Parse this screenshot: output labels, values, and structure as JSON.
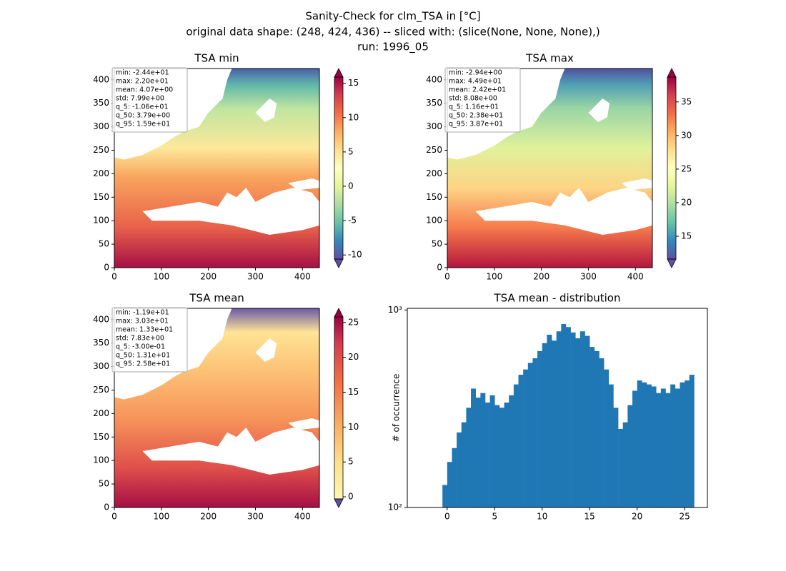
{
  "suptitle": [
    "Sanity-Check for clm_TSA in [°C]",
    "original data shape: (248, 424, 436) -- sliced with: (slice(None, None, None),)",
    "run: 1996_05"
  ],
  "chart_data": [
    {
      "type": "heatmap",
      "title": "TSA min",
      "xlim": [
        0,
        436
      ],
      "ylim": [
        0,
        424
      ],
      "xticks": [
        0,
        100,
        200,
        300,
        400
      ],
      "yticks": [
        0,
        50,
        100,
        150,
        200,
        250,
        300,
        350,
        400
      ],
      "clim": [
        -10.6,
        15.9
      ],
      "cticks": [
        -10,
        -5,
        0,
        5,
        10,
        15
      ],
      "colormap": "Spectral_r",
      "stats": [
        "min: -2.44e+01",
        "max: 2.20e+01",
        "mean: 4.07e+00",
        "std: 7.99e+00",
        "q_5: -1.06e+01",
        "q_50: 3.79e+00",
        "q_95: 1.59e+01"
      ]
    },
    {
      "type": "heatmap",
      "title": "TSA max",
      "xlim": [
        0,
        436
      ],
      "ylim": [
        0,
        424
      ],
      "xticks": [
        0,
        100,
        200,
        300,
        400
      ],
      "yticks": [
        0,
        50,
        100,
        150,
        200,
        250,
        300,
        350,
        400
      ],
      "clim": [
        11.6,
        38.7
      ],
      "cticks": [
        15,
        20,
        25,
        30,
        35
      ],
      "colormap": "Spectral_r",
      "stats": [
        "min: -2.94e+00",
        "max: 4.49e+01",
        "mean: 2.42e+01",
        "std: 8.08e+00",
        "q_5: 1.16e+01",
        "q_50: 2.38e+01",
        "q_95: 3.87e+01"
      ]
    },
    {
      "type": "heatmap",
      "title": "TSA mean",
      "xlim": [
        0,
        436
      ],
      "ylim": [
        0,
        424
      ],
      "xticks": [
        0,
        100,
        200,
        300,
        400
      ],
      "yticks": [
        0,
        50,
        100,
        150,
        200,
        250,
        300,
        350,
        400
      ],
      "clim": [
        -0.3,
        25.8
      ],
      "cticks": [
        0,
        5,
        10,
        15,
        20,
        25
      ],
      "colormap": "YlOrRd",
      "stats": [
        "min: -1.19e+01",
        "max: 3.03e+01",
        "mean: 1.33e+01",
        "std: 7.83e+00",
        "q_5: -3.00e-01",
        "q_50: 1.31e+01",
        "q_95: 2.58e+01"
      ]
    },
    {
      "type": "histogram",
      "title": "TSA mean - distribution",
      "ylabel": "# of occurrence",
      "color": "#1f77b4",
      "log_y": true,
      "xlim": [
        -4.2,
        27.4
      ],
      "ylim": [
        100,
        1020
      ],
      "xticks": [
        0,
        5,
        10,
        15,
        20,
        25
      ],
      "yticks": [
        {
          "value": 100,
          "label": "10²"
        },
        {
          "value": 1000,
          "label": "10³"
        }
      ],
      "bins": [
        -0.5,
        0,
        0.5,
        1,
        1.5,
        2,
        2.5,
        3,
        3.5,
        4,
        4.5,
        5,
        5.5,
        6,
        6.5,
        7,
        7.5,
        8,
        8.5,
        9,
        9.5,
        10,
        10.5,
        11,
        11.5,
        12,
        12.5,
        13,
        13.5,
        14,
        14.5,
        15,
        15.5,
        16,
        16.5,
        17,
        17.5,
        18,
        18.5,
        19,
        19.5,
        20,
        20.5,
        21,
        21.5,
        22,
        22.5,
        23,
        23.5,
        24,
        24.5,
        25,
        25.5,
        26
      ],
      "counts": [
        130,
        170,
        200,
        240,
        270,
        320,
        400,
        360,
        380,
        340,
        370,
        330,
        320,
        340,
        370,
        420,
        470,
        500,
        540,
        570,
        620,
        680,
        750,
        700,
        780,
        850,
        820,
        770,
        720,
        780,
        740,
        650,
        620,
        570,
        500,
        420,
        320,
        250,
        270,
        330,
        390,
        440,
        430,
        420,
        410,
        380,
        400,
        380,
        420,
        400,
        430,
        440,
        470
      ]
    }
  ]
}
